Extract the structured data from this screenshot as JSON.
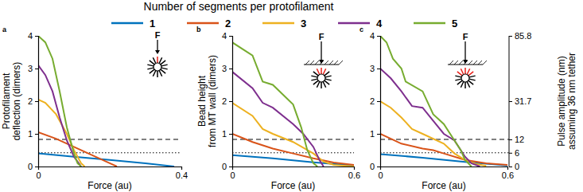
{
  "chart_data": [
    {
      "type": "line",
      "label": "a",
      "legend_title": "Number of segments per protofilament",
      "legend": "top",
      "xlabel": "Force (au)",
      "ylabel": [
        "Protofilament",
        "deflection (dimers)"
      ],
      "annotation": "F",
      "xlim": [
        0,
        0.4
      ],
      "xticks": [
        0,
        0.4
      ],
      "ylim": [
        0,
        4
      ],
      "yticks": [
        0,
        1,
        2,
        3,
        4
      ],
      "hlines": [
        {
          "value": 0.83,
          "line_style": "dashed"
        },
        {
          "value": 0.42,
          "line_style": "dotted"
        }
      ],
      "series": [
        {
          "name": "1",
          "color": "#0072bd",
          "x": [
            0,
            0.1,
            0.2,
            0.3,
            0.38
          ],
          "values": [
            0.4,
            0.3,
            0.2,
            0.1,
            0
          ]
        },
        {
          "name": "2",
          "color": "#d95319",
          "x": [
            0,
            0.05,
            0.1,
            0.15,
            0.2,
            0.22
          ],
          "values": [
            1.05,
            0.85,
            0.6,
            0.35,
            0.1,
            0
          ]
        },
        {
          "name": "3",
          "color": "#edb120",
          "x": [
            0,
            0.02,
            0.05,
            0.08,
            0.1,
            0.12,
            0.13
          ],
          "values": [
            2.05,
            1.95,
            1.6,
            1.0,
            0.5,
            0.1,
            0
          ]
        },
        {
          "name": "4",
          "color": "#7e2f8e",
          "x": [
            0,
            0.02,
            0.04,
            0.06,
            0.08,
            0.1,
            0.12
          ],
          "values": [
            3.1,
            2.8,
            2.3,
            1.5,
            0.8,
            0.3,
            0
          ]
        },
        {
          "name": "5",
          "color": "#77ac30",
          "x": [
            0,
            0.02,
            0.04,
            0.06,
            0.08,
            0.1,
            0.11,
            0.12
          ],
          "values": [
            4.0,
            3.8,
            3.3,
            2.3,
            1.2,
            0.4,
            0.1,
            0
          ]
        }
      ]
    },
    {
      "type": "line",
      "label": "b",
      "xlabel": "Force (au)",
      "ylabel": [
        "Bead height",
        "from MT wall (dimers)"
      ],
      "annotation": "F",
      "xlim": [
        0,
        0.6
      ],
      "xticks": [
        0,
        0.6
      ],
      "ylim": [
        0,
        4
      ],
      "yticks": [
        0,
        1,
        2,
        3,
        4
      ],
      "hlines": [
        {
          "value": 0.83,
          "line_style": "dashed"
        },
        {
          "value": 0.42,
          "line_style": "dotted"
        }
      ],
      "series": [
        {
          "name": "1",
          "color": "#0072bd",
          "x": [
            0,
            0.2,
            0.4,
            0.6
          ],
          "values": [
            0.35,
            0.25,
            0.13,
            0.03
          ]
        },
        {
          "name": "2",
          "color": "#d95319",
          "x": [
            0,
            0.1,
            0.2,
            0.3,
            0.4,
            0.5,
            0.6
          ],
          "values": [
            1.0,
            0.75,
            0.55,
            0.4,
            0.25,
            0.12,
            0.05
          ]
        },
        {
          "name": "3",
          "color": "#edb120",
          "x": [
            0,
            0.1,
            0.15,
            0.2,
            0.3,
            0.4,
            0.45,
            0.5,
            0.6
          ],
          "values": [
            1.95,
            1.55,
            1.15,
            1.0,
            0.75,
            0.4,
            0.15,
            0.05,
            0
          ]
        },
        {
          "name": "4",
          "color": "#7e2f8e",
          "x": [
            0,
            0.1,
            0.15,
            0.2,
            0.3,
            0.35,
            0.4,
            0.43,
            0.45
          ],
          "values": [
            2.9,
            2.4,
            1.95,
            1.8,
            1.3,
            1.0,
            0.6,
            0.2,
            0
          ]
        },
        {
          "name": "5",
          "color": "#77ac30",
          "x": [
            0,
            0.1,
            0.15,
            0.2,
            0.3,
            0.34,
            0.37,
            0.4,
            0.42
          ],
          "values": [
            3.8,
            3.4,
            2.6,
            2.5,
            1.9,
            1.2,
            0.5,
            0.1,
            0
          ]
        }
      ]
    },
    {
      "type": "line",
      "label": "c",
      "xlabel": "Force (au)",
      "y2label": [
        "Pulse amplitude (nm)",
        "assuming 36 nm tether"
      ],
      "annotation": "F",
      "xlim": [
        0,
        0.6
      ],
      "xticks": [
        0,
        0.6
      ],
      "ylim": [
        0,
        4
      ],
      "yticks": [
        0,
        1,
        2,
        3,
        4
      ],
      "y2lim": [
        0,
        85.8
      ],
      "y2ticks": [
        0,
        6,
        12,
        31.7,
        85.8
      ],
      "y2_positions": [
        0,
        0.42,
        0.83,
        2,
        4
      ],
      "hlines": [
        {
          "value": 0.83,
          "line_style": "dashed"
        },
        {
          "value": 0.42,
          "line_style": "dotted"
        }
      ],
      "series": [
        {
          "name": "1",
          "color": "#0072bd",
          "x": [
            0,
            0.2,
            0.4,
            0.6
          ],
          "values": [
            0.38,
            0.27,
            0.14,
            0.03
          ]
        },
        {
          "name": "2",
          "color": "#d95319",
          "x": [
            0,
            0.1,
            0.2,
            0.25,
            0.3,
            0.4,
            0.5,
            0.6
          ],
          "values": [
            1.0,
            0.7,
            0.55,
            0.5,
            0.4,
            0.2,
            0.1,
            0.05
          ]
        },
        {
          "name": "3",
          "color": "#edb120",
          "x": [
            0,
            0.05,
            0.1,
            0.15,
            0.2,
            0.3,
            0.35,
            0.4,
            0.45,
            0.5
          ],
          "values": [
            2.0,
            1.8,
            1.5,
            1.15,
            1.0,
            0.7,
            0.4,
            0.2,
            0.08,
            0.02
          ]
        },
        {
          "name": "4",
          "color": "#7e2f8e",
          "x": [
            0,
            0.05,
            0.1,
            0.15,
            0.2,
            0.25,
            0.3,
            0.35,
            0.4,
            0.43,
            0.47
          ],
          "values": [
            3.0,
            2.7,
            2.3,
            1.85,
            1.8,
            1.4,
            1.0,
            0.8,
            0.3,
            0.1,
            0
          ]
        },
        {
          "name": "5",
          "color": "#77ac30",
          "x": [
            0,
            0.03,
            0.06,
            0.1,
            0.12,
            0.2,
            0.25,
            0.3,
            0.35,
            0.38,
            0.4,
            0.43
          ],
          "values": [
            4.0,
            3.8,
            3.3,
            3.0,
            2.6,
            2.3,
            1.6,
            1.3,
            0.8,
            0.5,
            0.2,
            0
          ]
        }
      ]
    }
  ]
}
